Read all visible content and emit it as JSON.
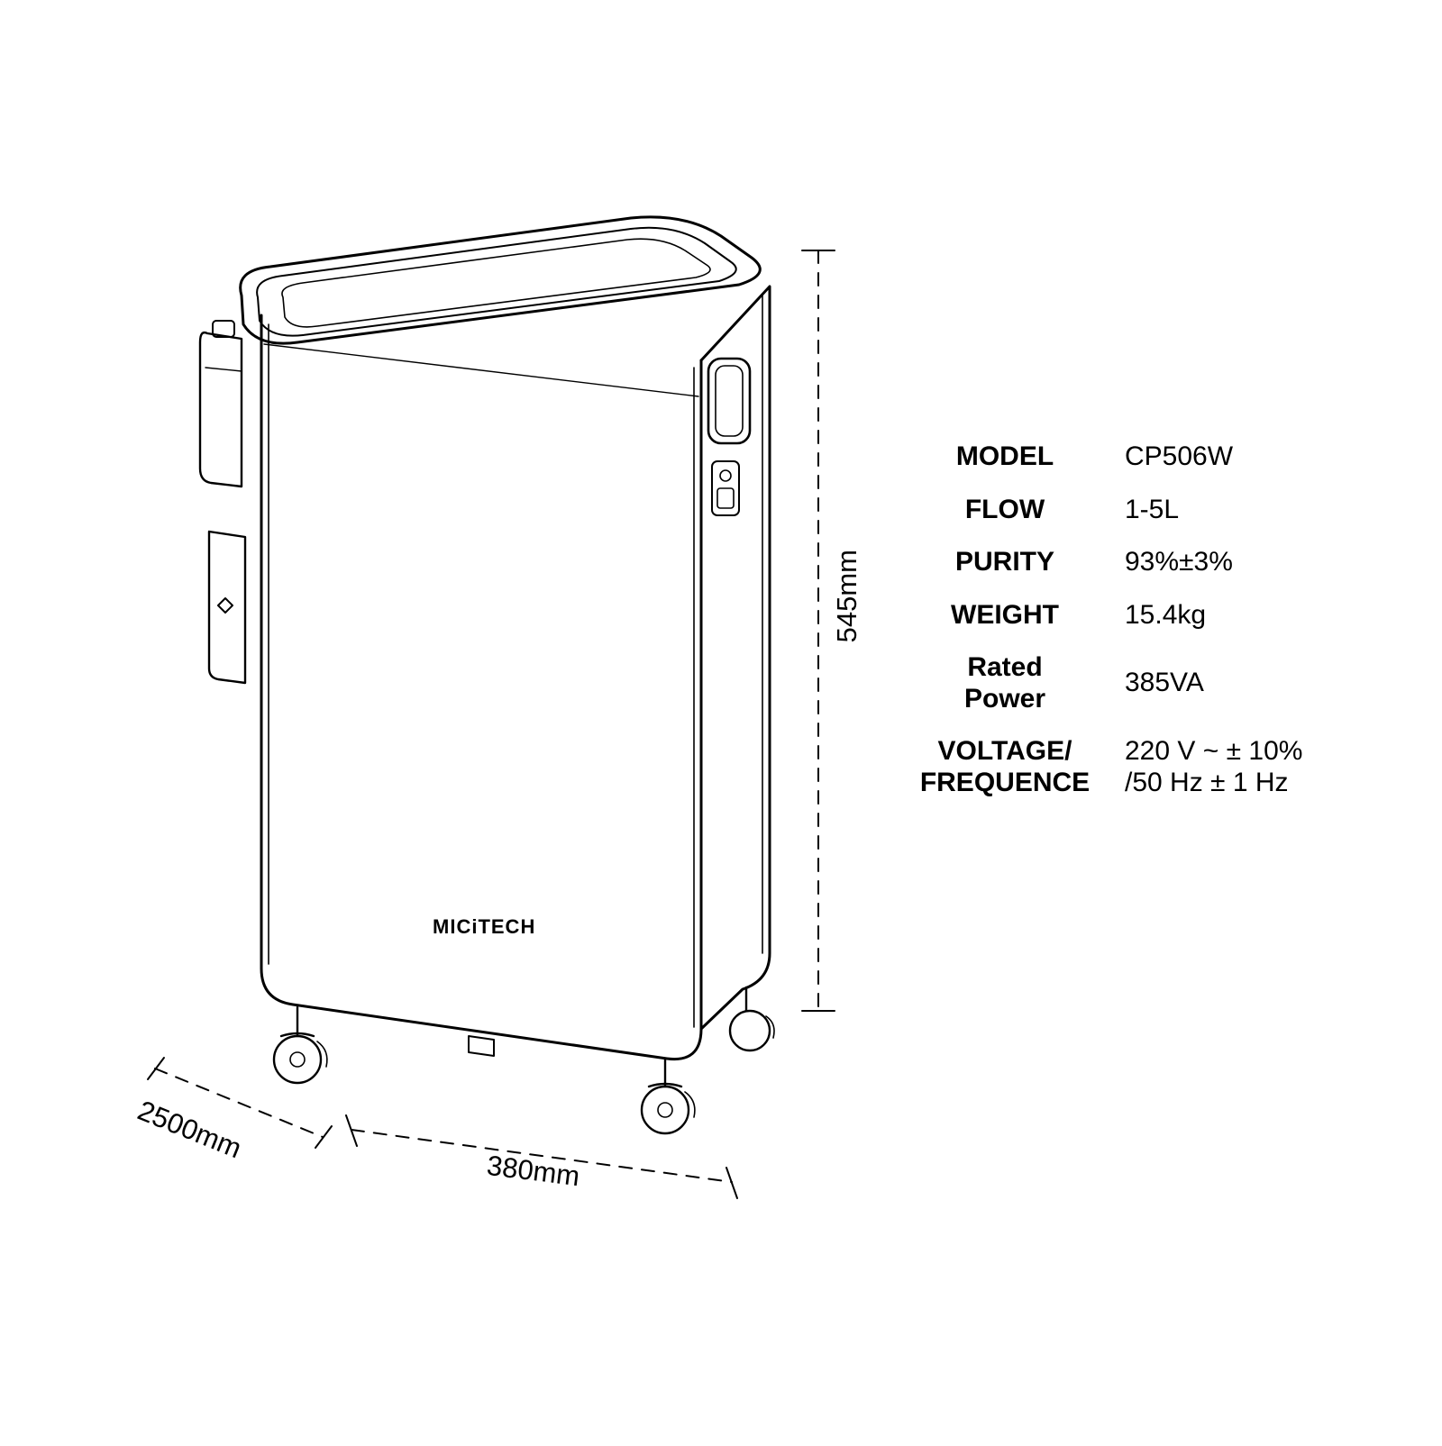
{
  "brand": "MICiTECH",
  "dimensions": {
    "height_label": "545mm",
    "width_label": "380mm",
    "depth_label": "2500mm"
  },
  "specs": [
    {
      "label": "MODEL",
      "value": "CP506W"
    },
    {
      "label": "FLOW",
      "value": "1-5L"
    },
    {
      "label": "PURITY",
      "value": "93%±3%"
    },
    {
      "label": "WEIGHT",
      "value": "15.4kg"
    },
    {
      "label": "Rated\nPower",
      "value": "385VA"
    },
    {
      "label": "VOLTAGE/\nFREQUENCE",
      "value": "220 V ~  ± 10%\n/50 Hz ± 1 Hz"
    }
  ],
  "style": {
    "stroke": "#000000",
    "stroke_thin": 1.5,
    "stroke_med": 2.2,
    "stroke_thick": 3,
    "dash": "12 10",
    "bg": "#ffffff"
  }
}
